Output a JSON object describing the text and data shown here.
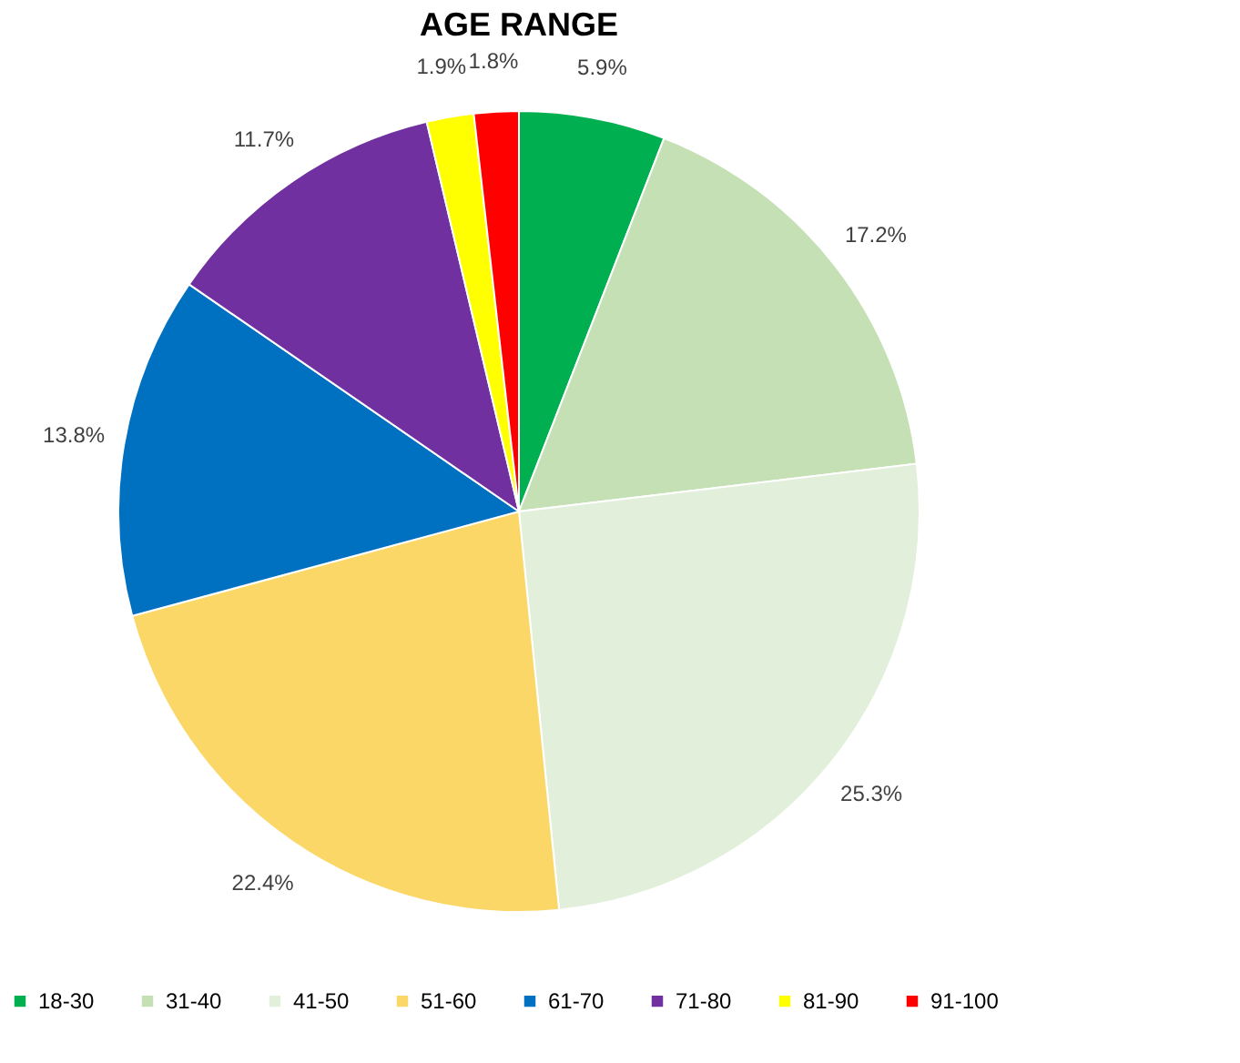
{
  "chart_data": {
    "type": "pie",
    "title": "AGE RANGE",
    "categories": [
      "18-30",
      "31-40",
      "41-50",
      "51-60",
      "61-70",
      "71-80",
      "81-90",
      "91-100"
    ],
    "values": [
      5.9,
      17.2,
      25.3,
      22.4,
      13.8,
      11.7,
      1.9,
      1.8
    ],
    "colors": [
      "#00b050",
      "#c5e0b4",
      "#e2efda",
      "#fad766",
      "#0070c0",
      "#7030a0",
      "#ffff00",
      "#ff0000"
    ],
    "value_labels": [
      "5.9%",
      "17.2%",
      "25.3%",
      "22.4%",
      "13.8%",
      "11.7%",
      "1.9%",
      "1.8%"
    ],
    "legend": "bottom"
  }
}
